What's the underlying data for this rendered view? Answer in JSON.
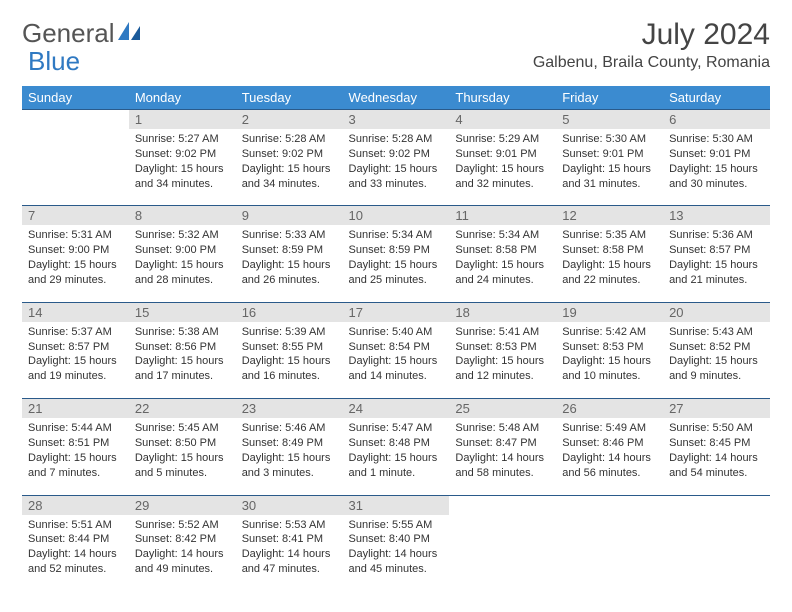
{
  "logo": {
    "part1": "General",
    "part2": "Blue"
  },
  "title": "July 2024",
  "location": "Galbenu, Braila County, Romania",
  "colors": {
    "header_bg": "#3b8bd0",
    "header_text": "#ffffff",
    "daynum_bg": "#e4e4e4",
    "border": "#2a5a8a",
    "logo_blue": "#2f79c2"
  },
  "weekdays": [
    "Sunday",
    "Monday",
    "Tuesday",
    "Wednesday",
    "Thursday",
    "Friday",
    "Saturday"
  ],
  "weeks": [
    [
      null,
      {
        "n": "1",
        "sr": "Sunrise: 5:27 AM",
        "ss": "Sunset: 9:02 PM",
        "dl": "Daylight: 15 hours and 34 minutes."
      },
      {
        "n": "2",
        "sr": "Sunrise: 5:28 AM",
        "ss": "Sunset: 9:02 PM",
        "dl": "Daylight: 15 hours and 34 minutes."
      },
      {
        "n": "3",
        "sr": "Sunrise: 5:28 AM",
        "ss": "Sunset: 9:02 PM",
        "dl": "Daylight: 15 hours and 33 minutes."
      },
      {
        "n": "4",
        "sr": "Sunrise: 5:29 AM",
        "ss": "Sunset: 9:01 PM",
        "dl": "Daylight: 15 hours and 32 minutes."
      },
      {
        "n": "5",
        "sr": "Sunrise: 5:30 AM",
        "ss": "Sunset: 9:01 PM",
        "dl": "Daylight: 15 hours and 31 minutes."
      },
      {
        "n": "6",
        "sr": "Sunrise: 5:30 AM",
        "ss": "Sunset: 9:01 PM",
        "dl": "Daylight: 15 hours and 30 minutes."
      }
    ],
    [
      {
        "n": "7",
        "sr": "Sunrise: 5:31 AM",
        "ss": "Sunset: 9:00 PM",
        "dl": "Daylight: 15 hours and 29 minutes."
      },
      {
        "n": "8",
        "sr": "Sunrise: 5:32 AM",
        "ss": "Sunset: 9:00 PM",
        "dl": "Daylight: 15 hours and 28 minutes."
      },
      {
        "n": "9",
        "sr": "Sunrise: 5:33 AM",
        "ss": "Sunset: 8:59 PM",
        "dl": "Daylight: 15 hours and 26 minutes."
      },
      {
        "n": "10",
        "sr": "Sunrise: 5:34 AM",
        "ss": "Sunset: 8:59 PM",
        "dl": "Daylight: 15 hours and 25 minutes."
      },
      {
        "n": "11",
        "sr": "Sunrise: 5:34 AM",
        "ss": "Sunset: 8:58 PM",
        "dl": "Daylight: 15 hours and 24 minutes."
      },
      {
        "n": "12",
        "sr": "Sunrise: 5:35 AM",
        "ss": "Sunset: 8:58 PM",
        "dl": "Daylight: 15 hours and 22 minutes."
      },
      {
        "n": "13",
        "sr": "Sunrise: 5:36 AM",
        "ss": "Sunset: 8:57 PM",
        "dl": "Daylight: 15 hours and 21 minutes."
      }
    ],
    [
      {
        "n": "14",
        "sr": "Sunrise: 5:37 AM",
        "ss": "Sunset: 8:57 PM",
        "dl": "Daylight: 15 hours and 19 minutes."
      },
      {
        "n": "15",
        "sr": "Sunrise: 5:38 AM",
        "ss": "Sunset: 8:56 PM",
        "dl": "Daylight: 15 hours and 17 minutes."
      },
      {
        "n": "16",
        "sr": "Sunrise: 5:39 AM",
        "ss": "Sunset: 8:55 PM",
        "dl": "Daylight: 15 hours and 16 minutes."
      },
      {
        "n": "17",
        "sr": "Sunrise: 5:40 AM",
        "ss": "Sunset: 8:54 PM",
        "dl": "Daylight: 15 hours and 14 minutes."
      },
      {
        "n": "18",
        "sr": "Sunrise: 5:41 AM",
        "ss": "Sunset: 8:53 PM",
        "dl": "Daylight: 15 hours and 12 minutes."
      },
      {
        "n": "19",
        "sr": "Sunrise: 5:42 AM",
        "ss": "Sunset: 8:53 PM",
        "dl": "Daylight: 15 hours and 10 minutes."
      },
      {
        "n": "20",
        "sr": "Sunrise: 5:43 AM",
        "ss": "Sunset: 8:52 PM",
        "dl": "Daylight: 15 hours and 9 minutes."
      }
    ],
    [
      {
        "n": "21",
        "sr": "Sunrise: 5:44 AM",
        "ss": "Sunset: 8:51 PM",
        "dl": "Daylight: 15 hours and 7 minutes."
      },
      {
        "n": "22",
        "sr": "Sunrise: 5:45 AM",
        "ss": "Sunset: 8:50 PM",
        "dl": "Daylight: 15 hours and 5 minutes."
      },
      {
        "n": "23",
        "sr": "Sunrise: 5:46 AM",
        "ss": "Sunset: 8:49 PM",
        "dl": "Daylight: 15 hours and 3 minutes."
      },
      {
        "n": "24",
        "sr": "Sunrise: 5:47 AM",
        "ss": "Sunset: 8:48 PM",
        "dl": "Daylight: 15 hours and 1 minute."
      },
      {
        "n": "25",
        "sr": "Sunrise: 5:48 AM",
        "ss": "Sunset: 8:47 PM",
        "dl": "Daylight: 14 hours and 58 minutes."
      },
      {
        "n": "26",
        "sr": "Sunrise: 5:49 AM",
        "ss": "Sunset: 8:46 PM",
        "dl": "Daylight: 14 hours and 56 minutes."
      },
      {
        "n": "27",
        "sr": "Sunrise: 5:50 AM",
        "ss": "Sunset: 8:45 PM",
        "dl": "Daylight: 14 hours and 54 minutes."
      }
    ],
    [
      {
        "n": "28",
        "sr": "Sunrise: 5:51 AM",
        "ss": "Sunset: 8:44 PM",
        "dl": "Daylight: 14 hours and 52 minutes."
      },
      {
        "n": "29",
        "sr": "Sunrise: 5:52 AM",
        "ss": "Sunset: 8:42 PM",
        "dl": "Daylight: 14 hours and 49 minutes."
      },
      {
        "n": "30",
        "sr": "Sunrise: 5:53 AM",
        "ss": "Sunset: 8:41 PM",
        "dl": "Daylight: 14 hours and 47 minutes."
      },
      {
        "n": "31",
        "sr": "Sunrise: 5:55 AM",
        "ss": "Sunset: 8:40 PM",
        "dl": "Daylight: 14 hours and 45 minutes."
      },
      null,
      null,
      null
    ]
  ]
}
